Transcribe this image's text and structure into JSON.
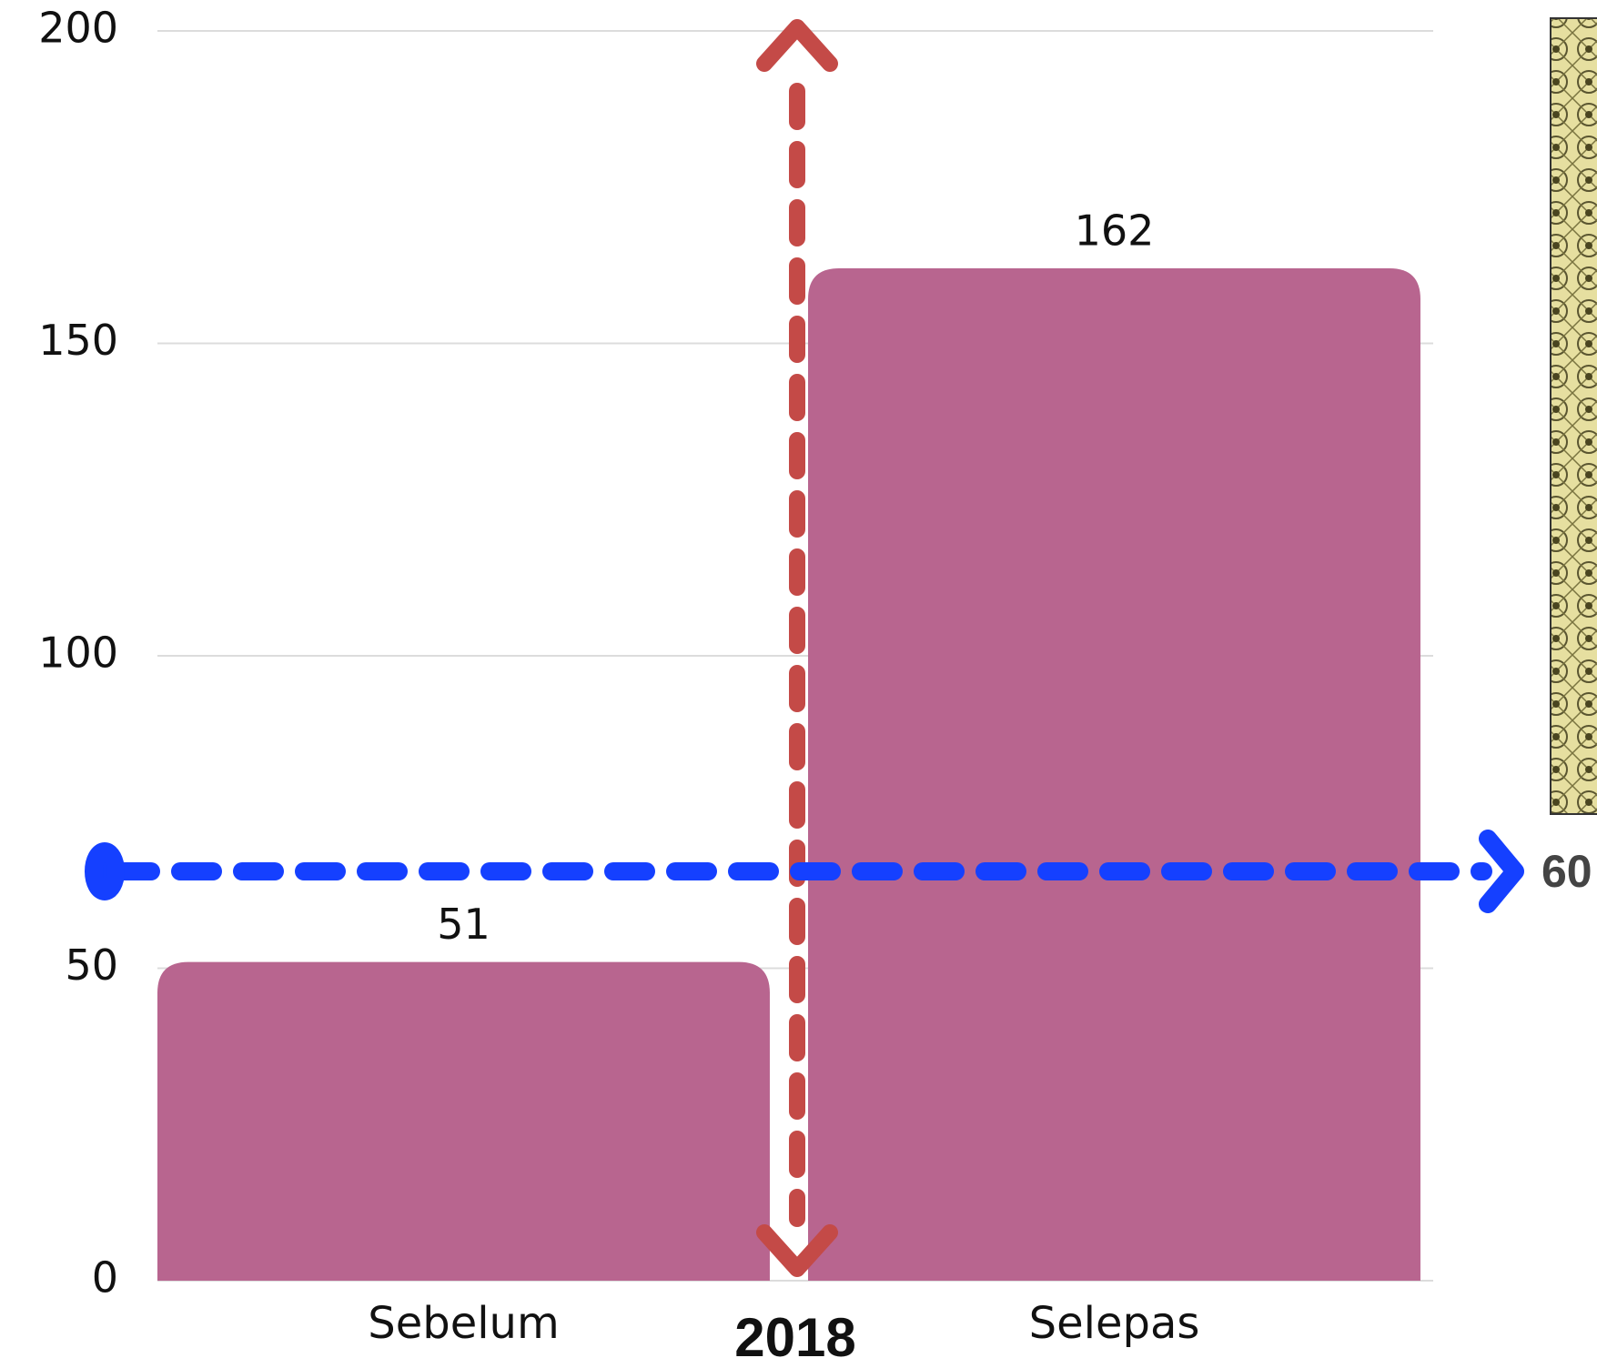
{
  "chart_data": {
    "type": "bar",
    "categories": [
      "Sebelum",
      "Selepas"
    ],
    "values": [
      51,
      162
    ],
    "color": "#b8658f",
    "ylim": [
      0,
      200
    ],
    "yticks": [
      0,
      50,
      100,
      150,
      200
    ],
    "grid": true,
    "annotations": [
      "2018",
      "60"
    ]
  }
}
